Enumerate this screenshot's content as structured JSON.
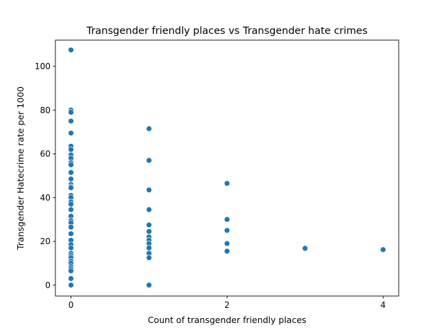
{
  "chart_data": {
    "type": "scatter",
    "title": "Transgender friendly places vs Transgender hate crimes",
    "xlabel": "Count of transgender friendly places",
    "ylabel": "Transgender Hatecrime rate per 1000",
    "xlim": [
      -0.2,
      4.2
    ],
    "ylim": [
      -5,
      112
    ],
    "xticks": [
      0,
      2,
      4
    ],
    "yticks": [
      0,
      20,
      40,
      60,
      80,
      100
    ],
    "grid": false,
    "color": "#1f77b4",
    "points": [
      {
        "x": 0,
        "y": 107.5
      },
      {
        "x": 0,
        "y": 80.0
      },
      {
        "x": 0,
        "y": 79.0
      },
      {
        "x": 0,
        "y": 75.0
      },
      {
        "x": 0,
        "y": 69.5
      },
      {
        "x": 0,
        "y": 63.5
      },
      {
        "x": 0,
        "y": 62.0
      },
      {
        "x": 0,
        "y": 59.5
      },
      {
        "x": 0,
        "y": 58.0
      },
      {
        "x": 0,
        "y": 56.0
      },
      {
        "x": 0,
        "y": 55.0
      },
      {
        "x": 0,
        "y": 51.5
      },
      {
        "x": 0,
        "y": 48.5
      },
      {
        "x": 0,
        "y": 46.0
      },
      {
        "x": 0,
        "y": 45.0
      },
      {
        "x": 0,
        "y": 44.5
      },
      {
        "x": 0,
        "y": 41.0
      },
      {
        "x": 0,
        "y": 40.0
      },
      {
        "x": 0,
        "y": 38.0
      },
      {
        "x": 0,
        "y": 37.0
      },
      {
        "x": 0,
        "y": 34.5
      },
      {
        "x": 0,
        "y": 31.5
      },
      {
        "x": 0,
        "y": 29.5
      },
      {
        "x": 0,
        "y": 28.5
      },
      {
        "x": 0,
        "y": 26.5
      },
      {
        "x": 0,
        "y": 23.5
      },
      {
        "x": 0,
        "y": 20.5
      },
      {
        "x": 0,
        "y": 18.5
      },
      {
        "x": 0,
        "y": 17.0
      },
      {
        "x": 0,
        "y": 14.5
      },
      {
        "x": 0,
        "y": 13.5
      },
      {
        "x": 0,
        "y": 12.5
      },
      {
        "x": 0,
        "y": 11.0
      },
      {
        "x": 0,
        "y": 10.0
      },
      {
        "x": 0,
        "y": 8.5
      },
      {
        "x": 0,
        "y": 7.5
      },
      {
        "x": 0,
        "y": 6.5
      },
      {
        "x": 0,
        "y": 3.0
      },
      {
        "x": 0,
        "y": 0.0
      },
      {
        "x": 1,
        "y": 71.5
      },
      {
        "x": 1,
        "y": 57.0
      },
      {
        "x": 1,
        "y": 43.5
      },
      {
        "x": 1,
        "y": 34.5
      },
      {
        "x": 1,
        "y": 27.5
      },
      {
        "x": 1,
        "y": 24.5
      },
      {
        "x": 1,
        "y": 22.0
      },
      {
        "x": 1,
        "y": 20.5
      },
      {
        "x": 1,
        "y": 19.0
      },
      {
        "x": 1,
        "y": 17.0
      },
      {
        "x": 1,
        "y": 14.5
      },
      {
        "x": 1,
        "y": 12.5
      },
      {
        "x": 1,
        "y": 0.0
      },
      {
        "x": 2,
        "y": 46.5
      },
      {
        "x": 2,
        "y": 30.0
      },
      {
        "x": 2,
        "y": 25.0
      },
      {
        "x": 2,
        "y": 19.0
      },
      {
        "x": 2,
        "y": 15.5
      },
      {
        "x": 3,
        "y": 16.8
      },
      {
        "x": 4,
        "y": 16.2
      }
    ]
  }
}
